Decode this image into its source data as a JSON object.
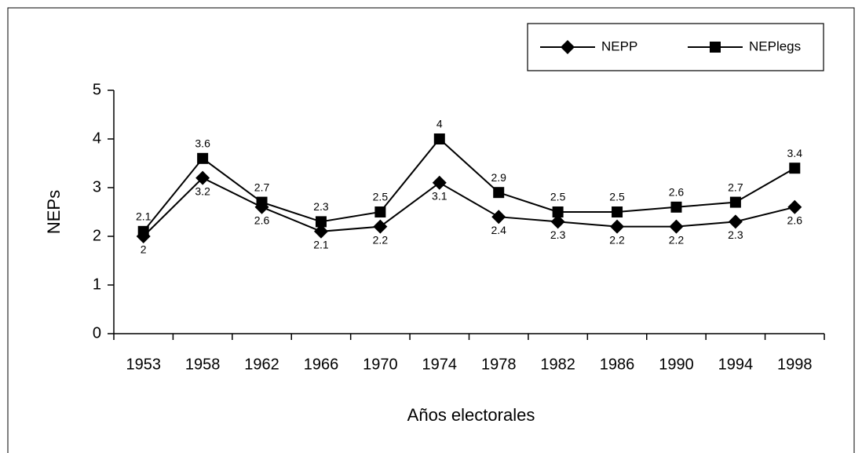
{
  "chart_data": {
    "type": "line",
    "x_label": "Años electorales",
    "y_label": "NEPs",
    "categories": [
      "1953",
      "1958",
      "1962",
      "1966",
      "1970",
      "1974",
      "1978",
      "1982",
      "1986",
      "1990",
      "1994",
      "1998"
    ],
    "series": [
      {
        "name": "NEPP",
        "color": "#000000",
        "marker": "diamond",
        "values": [
          2,
          3.2,
          2.6,
          2.1,
          2.2,
          3.1,
          2.4,
          2.3,
          2.2,
          2.2,
          2.3,
          2.6
        ]
      },
      {
        "name": "NEPlegs",
        "color": "#000000",
        "marker": "square",
        "values": [
          2.1,
          3.6,
          2.7,
          2.3,
          2.5,
          4,
          2.9,
          2.5,
          2.5,
          2.6,
          2.7,
          3.4
        ]
      }
    ],
    "ylim": [
      0,
      5
    ],
    "yticks": [
      0,
      1,
      2,
      3,
      4,
      5
    ],
    "grid": false,
    "legend": "upper right"
  }
}
